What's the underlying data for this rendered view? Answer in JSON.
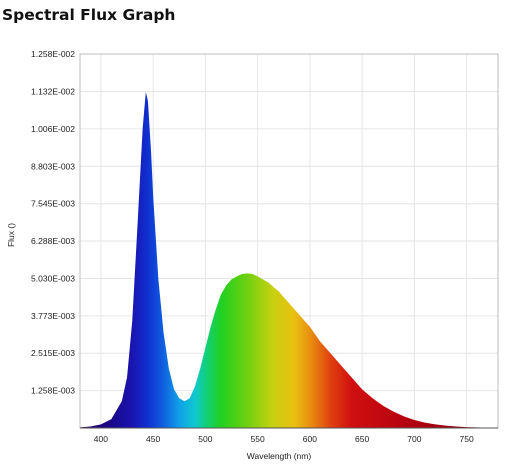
{
  "header": {
    "title": "Spectral Flux Graph"
  },
  "chart_data": {
    "type": "area",
    "title": "Spectral Flux Graph",
    "xlabel": "Wavelength (nm)",
    "ylabel": "Flux ()",
    "xlim": [
      380,
      780
    ],
    "ylim": [
      0,
      0.01258
    ],
    "x_ticks": [
      400,
      450,
      500,
      550,
      600,
      650,
      700,
      750
    ],
    "y_ticks": [
      0.001258,
      0.002515,
      0.003773,
      0.00503,
      0.006288,
      0.007545,
      0.008803,
      0.01006,
      0.01132,
      0.01258
    ],
    "x_tick_labels": [
      "400",
      "450",
      "500",
      "550",
      "600",
      "650",
      "700",
      "750"
    ],
    "y_tick_labels": [
      "1.258E-003",
      "2.515E-003",
      "3.773E-003",
      "5.030E-003",
      "6.288E-003",
      "7.545E-003",
      "8.803E-003",
      "1.006E-002",
      "1.132E-002",
      "1.258E-002"
    ],
    "grid": true,
    "fill": "spectral-rainbow",
    "series": [
      {
        "x": [
          380,
          390,
          400,
          410,
          420,
          425,
          430,
          435,
          440,
          443,
          445,
          448,
          450,
          455,
          460,
          465,
          470,
          475,
          480,
          485,
          490,
          495,
          500,
          505,
          510,
          515,
          520,
          525,
          530,
          535,
          540,
          545,
          550,
          555,
          560,
          570,
          580,
          590,
          600,
          610,
          620,
          630,
          640,
          650,
          660,
          670,
          680,
          690,
          700,
          710,
          720,
          730,
          740,
          750,
          760,
          770,
          780
        ],
        "values": [
          2e-05,
          5e-05,
          0.00012,
          0.0003,
          0.0009,
          0.0017,
          0.0036,
          0.0068,
          0.0101,
          0.0113,
          0.011,
          0.0093,
          0.0078,
          0.005,
          0.0032,
          0.002,
          0.0013,
          0.001,
          0.0009,
          0.001,
          0.0014,
          0.002,
          0.0027,
          0.0034,
          0.004,
          0.0045,
          0.0048,
          0.005,
          0.0051,
          0.00518,
          0.0052,
          0.00518,
          0.0051,
          0.005,
          0.0049,
          0.0046,
          0.0042,
          0.0038,
          0.0034,
          0.0029,
          0.0025,
          0.0021,
          0.0017,
          0.0013,
          0.001,
          0.00075,
          0.00055,
          0.00039,
          0.00027,
          0.00018,
          0.00012,
          8e-05,
          5e-05,
          3e-05,
          2e-05,
          1e-05,
          0.0
        ]
      }
    ]
  }
}
